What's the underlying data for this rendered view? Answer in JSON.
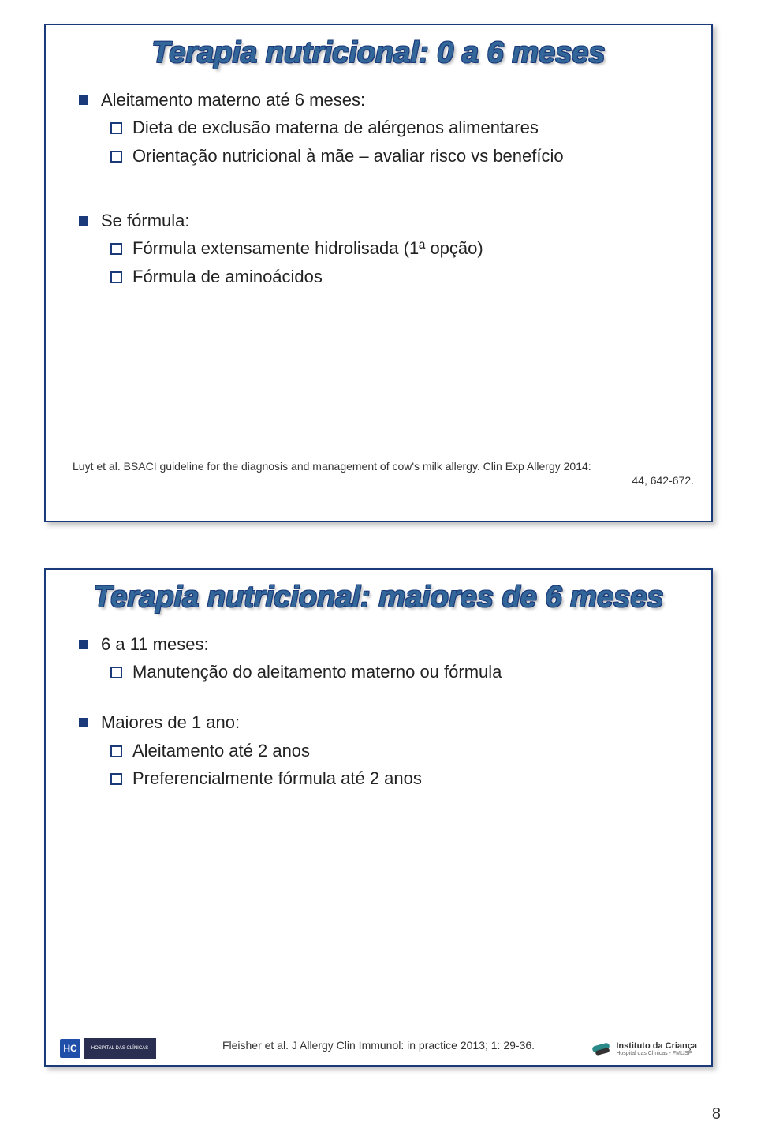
{
  "colors": {
    "border": "#1a3a7a",
    "title_fill": "#336699",
    "title_outline": "#1a3a7a",
    "bullet": "#1a3a7a",
    "text": "#222222",
    "background": "#ffffff"
  },
  "typography": {
    "title_fontsize_pt": 29,
    "body_fontsize_pt": 17,
    "citation_fontsize_pt": 10,
    "pagenum_fontsize_pt": 15,
    "title_style": "bold italic"
  },
  "slide1": {
    "title": "Terapia nutricional: 0 a 6 meses",
    "b1": "Aleitamento materno até 6 meses:",
    "b1a": "Dieta de exclusão materna de alérgenos alimentares",
    "b1b": "Orientação nutricional à mãe – avaliar risco vs benefício",
    "b2": "Se fórmula:",
    "b2a": "Fórmula extensamente hidrolisada (1ª opção)",
    "b2b": "Fórmula de aminoácidos",
    "citation_l1": "Luyt et al. BSACI guideline for the diagnosis and management of cow's milk allergy. Clin Exp Allergy 2014:",
    "citation_l2": "44, 642-672."
  },
  "slide2": {
    "title": "Terapia nutricional: maiores de 6 meses",
    "b1": "6 a 11 meses:",
    "b1a": "Manutenção do aleitamento materno ou fórmula",
    "b2": "Maiores de 1 ano:",
    "b2a": "Aleitamento até 2 anos",
    "b2b": "Preferencialmente fórmula até 2 anos",
    "citation": "Fleisher et al. J Allergy Clin Immunol: in practice 2013; 1: 29-36.",
    "footer": {
      "hc": "HC",
      "hospital": "HOSPITAL DAS CLÍNICAS",
      "icr_title": "Instituto da Criança",
      "icr_sub": "Hospital das Clínicas - FMUSP"
    }
  },
  "page_number": "8"
}
